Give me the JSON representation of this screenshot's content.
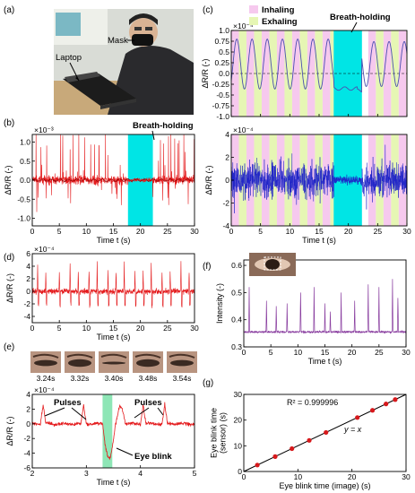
{
  "figure": {
    "panels": {
      "a": {
        "letter": "(a)",
        "labels": {
          "mask": "Mask",
          "laptop": "Laptop"
        }
      },
      "b": {
        "letter": "(b)",
        "annotation": "Breath-holding"
      },
      "c": {
        "letter": "(c)",
        "legend": {
          "inhaling": "Inhaling",
          "exhaling": "Exhaling"
        },
        "annotation": "Breath-holding"
      },
      "d": {
        "letter": "(d)"
      },
      "e": {
        "letter": "(e)",
        "thumbs": [
          "3.24s",
          "3.32s",
          "3.40s",
          "3.48s",
          "3.54s"
        ],
        "annotations": {
          "pulses_left": "Pulses",
          "pulses_right": "Pulses",
          "blink": "Eye blink"
        }
      },
      "f": {
        "letter": "(f)"
      },
      "g": {
        "letter": "(g)",
        "r2": "R² = 0.999996",
        "fit": "y = x"
      }
    },
    "colors": {
      "red": "#e41a1c",
      "blue": "#1f24c8",
      "purple": "#8a3fa0",
      "cyan": "#00e5e5",
      "pink": "#f6c9ee",
      "lime": "#e6f6b4",
      "green": "#8ee6b6"
    }
  },
  "chart_data": [
    {
      "id": "b",
      "type": "line",
      "xlabel": "Time t (s)",
      "ylabel": "ΔR/R (-)",
      "yexp": "×10⁻³",
      "xlim": [
        0,
        30
      ],
      "ylim": [
        -1.2,
        1.2
      ],
      "xticks": [
        0,
        5,
        10,
        15,
        20,
        25,
        30
      ],
      "yticks": [
        -1.0,
        -0.5,
        0.0,
        0.5,
        1.0
      ],
      "ytick_labels": [
        "-1.0",
        "-0.5",
        "0.0",
        "0.5",
        "1.0"
      ],
      "highlight": [
        17.7,
        22.3
      ]
    },
    {
      "id": "c1",
      "type": "line",
      "xlabel": "",
      "ylabel": "ΔR/R (-)",
      "yexp": "×10⁻⁴",
      "xlim": [
        0,
        30
      ],
      "ylim": [
        -1.0,
        1.0
      ],
      "xticks": [
        0,
        5,
        10,
        15,
        20,
        25,
        30
      ],
      "yticks": [
        -1.0,
        -0.75,
        -0.5,
        -0.25,
        0.0,
        0.25,
        0.5,
        0.75,
        1.0
      ],
      "ytick_labels": [
        "-1.0",
        "-0.75",
        "-0.5",
        "-0.25",
        "0.0",
        "0.25",
        "0.5",
        "0.75",
        "1.0"
      ],
      "highlight": [
        17.5,
        22.3
      ]
    },
    {
      "id": "c2",
      "type": "line",
      "xlabel": "Time t (s)",
      "ylabel": "ΔR/R (-)",
      "yexp": "×10⁻⁴",
      "xlim": [
        0,
        30
      ],
      "ylim": [
        -4,
        4
      ],
      "xticks": [
        0,
        5,
        10,
        15,
        20,
        25,
        30
      ],
      "yticks": [
        -4,
        -2,
        0,
        2,
        4
      ],
      "ytick_labels": [
        "-4",
        "-2",
        "0",
        "2",
        "4"
      ],
      "highlight": [
        17.5,
        22.3
      ]
    },
    {
      "id": "d",
      "type": "line",
      "xlabel": "Time t (s)",
      "ylabel": "ΔR/R (-)",
      "yexp": "×10⁻⁴",
      "xlim": [
        0,
        30
      ],
      "ylim": [
        -5,
        6
      ],
      "xticks": [
        0,
        5,
        10,
        15,
        20,
        25,
        30
      ],
      "yticks": [
        -4,
        -2,
        0,
        2,
        4,
        6
      ],
      "ytick_labels": [
        "-4",
        "-2",
        "0",
        "2",
        "4",
        "6"
      ]
    },
    {
      "id": "e",
      "type": "line",
      "xlabel": "Time t (s)",
      "ylabel": "ΔR/R (-)",
      "yexp": "×10⁻⁴",
      "xlim": [
        2,
        5
      ],
      "ylim": [
        -6,
        4
      ],
      "xticks": [
        2,
        3,
        4,
        5
      ],
      "yticks": [
        -6,
        -4,
        -2,
        0,
        2,
        4
      ],
      "ytick_labels": [
        "-6",
        "-4",
        "-2",
        "0",
        "2",
        "4"
      ],
      "highlight": [
        3.3,
        3.48
      ]
    },
    {
      "id": "f",
      "type": "line",
      "xlabel": "Time t (s)",
      "ylabel": "Intensity (-)",
      "xlim": [
        0,
        30
      ],
      "ylim": [
        0.3,
        0.62
      ],
      "xticks": [
        0,
        5,
        10,
        15,
        20,
        25,
        30
      ],
      "yticks": [
        0.3,
        0.4,
        0.5,
        0.6
      ],
      "ytick_labels": [
        "0.3",
        "0.4",
        "0.5",
        "0.6"
      ],
      "spikes_x": [
        1,
        4.2,
        6,
        8,
        10.5,
        13,
        15,
        16,
        18,
        20.5,
        23,
        25,
        27.5,
        28.5
      ],
      "spikes_y": [
        0.52,
        0.47,
        0.45,
        0.46,
        0.5,
        0.52,
        0.46,
        0.43,
        0.5,
        0.47,
        0.53,
        0.52,
        0.55,
        0.48
      ]
    },
    {
      "id": "g",
      "type": "scatter",
      "xlabel": "Eye blink time (image) (s)",
      "ylabel": "Eye blink time\n(sensor) (s)",
      "xlim": [
        0,
        30
      ],
      "ylim": [
        0,
        30
      ],
      "xticks": [
        0,
        10,
        20,
        30
      ],
      "yticks": [
        0,
        10,
        20,
        30
      ],
      "ytick_labels": [
        "0",
        "10",
        "20",
        "30"
      ],
      "x": [
        2.5,
        5.8,
        8.9,
        12.1,
        15.2,
        21,
        23.8,
        26.3,
        28
      ],
      "y": [
        2.5,
        5.8,
        8.9,
        12.1,
        15.2,
        21,
        23.8,
        26.3,
        28
      ]
    }
  ]
}
